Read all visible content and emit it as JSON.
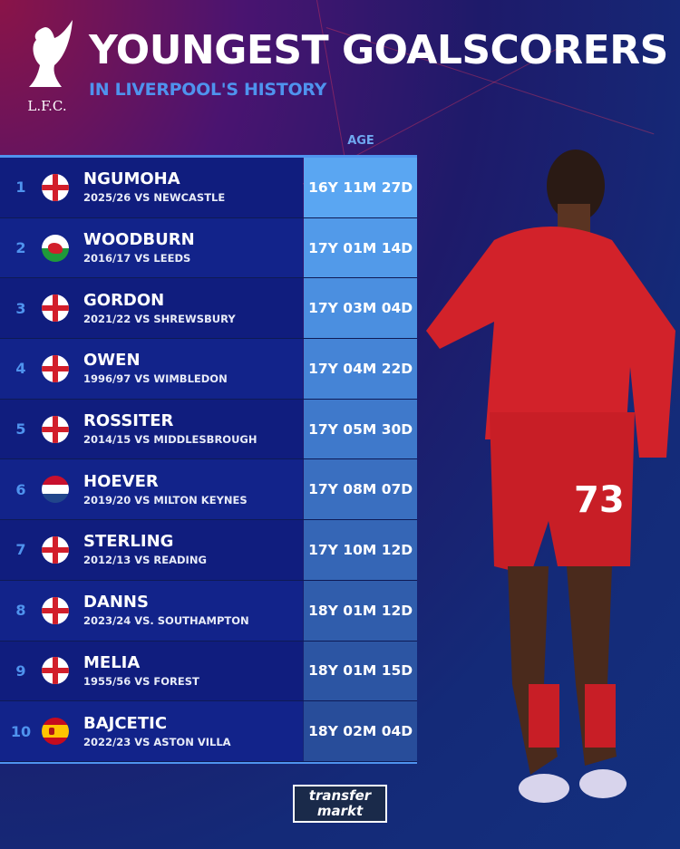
{
  "header": {
    "club_logo_text": "L.F.C.",
    "title": "YOUNGEST GOALSCORERS",
    "subtitle": "IN LIVERPOOL'S HISTORY",
    "age_column": "AGE"
  },
  "colors": {
    "accent": "#4f93ee",
    "row_bg": "#101d7e"
  },
  "rows": [
    {
      "rank": "1",
      "flag": "england",
      "name": "NGUMOHA",
      "match": "2025/26 VS NEWCASTLE",
      "age": "16Y 11M 27D",
      "age_color": "#5aa6f2"
    },
    {
      "rank": "2",
      "flag": "wales",
      "name": "WOODBURN",
      "match": "2016/17 VS LEEDS",
      "age": "17Y 01M 14D",
      "age_color": "#529ae9"
    },
    {
      "rank": "3",
      "flag": "england",
      "name": "GORDON",
      "match": "2021/22 VS SHREWSBURY",
      "age": "17Y 03M 04D",
      "age_color": "#4b8fe0"
    },
    {
      "rank": "4",
      "flag": "england",
      "name": "OWEN",
      "match": "1996/97 VS WIMBLEDON",
      "age": "17Y 04M 22D",
      "age_color": "#4584d6"
    },
    {
      "rank": "5",
      "flag": "england",
      "name": "ROSSITER",
      "match": "2014/15 VS MIDDLESBROUGH",
      "age": "17Y 05M 30D",
      "age_color": "#3f79cb"
    },
    {
      "rank": "6",
      "flag": "netherlands",
      "name": "HOEVER",
      "match": "2019/20 VS MILTON KEYNES",
      "age": "17Y 08M 07D",
      "age_color": "#3a6fc0"
    },
    {
      "rank": "7",
      "flag": "england",
      "name": "STERLING",
      "match": "2012/13 VS READING",
      "age": "17Y 10M 12D",
      "age_color": "#3566b6"
    },
    {
      "rank": "8",
      "flag": "england",
      "name": "DANNS",
      "match": "2023/24 VS. SOUTHAMPTON",
      "age": "18Y 01M 12D",
      "age_color": "#305dac"
    },
    {
      "rank": "9",
      "flag": "england",
      "name": "MELIA",
      "match": "1955/56 VS FOREST",
      "age": "18Y 01M 15D",
      "age_color": "#2c55a3"
    },
    {
      "rank": "10",
      "flag": "spain",
      "name": "BAJCETIC",
      "match": "2022/23 VS ASTON VILLA",
      "age": "18Y 02M 04D",
      "age_color": "#284d9a"
    }
  ],
  "footer": {
    "logo_line1": "transfer",
    "logo_line2": "markt"
  },
  "player_shirt_number": "73"
}
